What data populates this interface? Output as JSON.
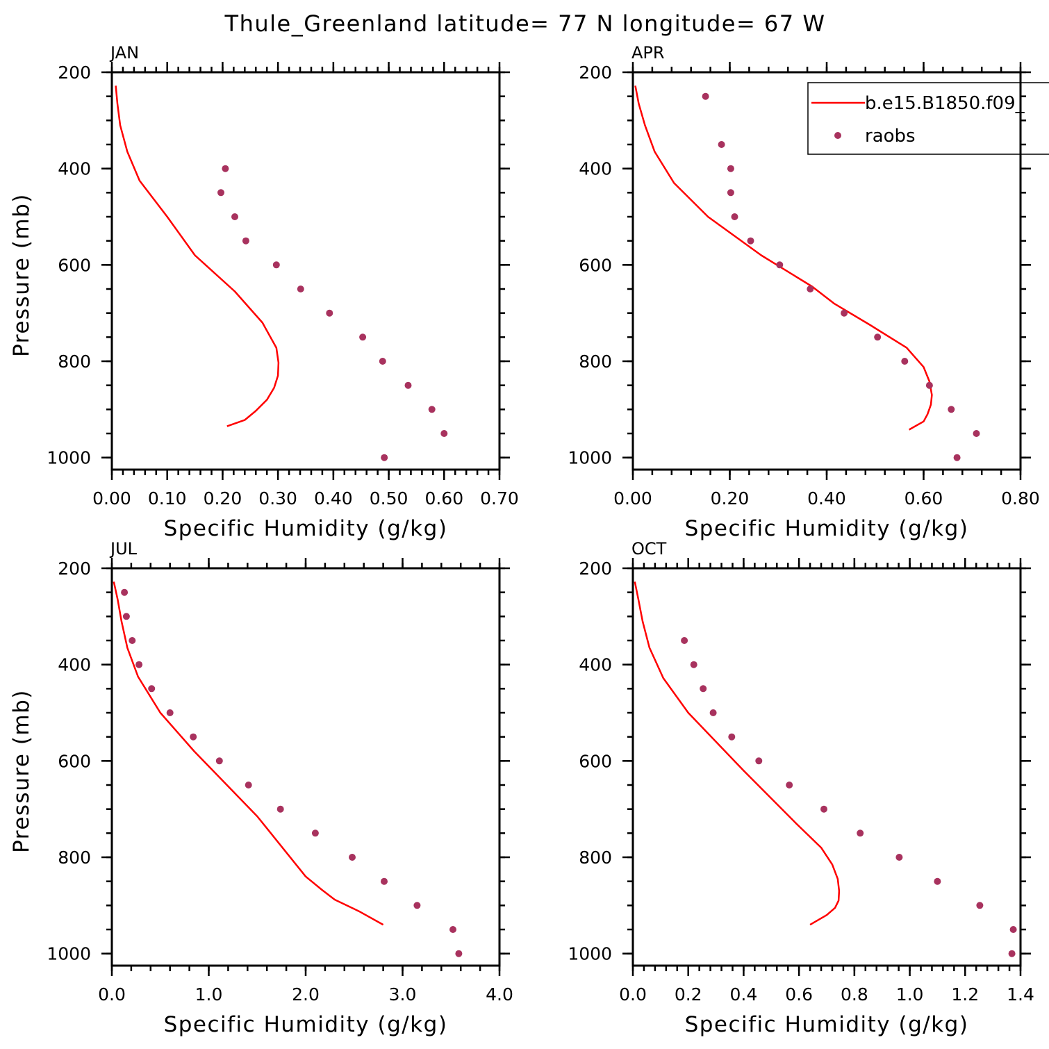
{
  "title": "Thule_Greenland  latitude= 77 N longitude= 67 W",
  "legend": {
    "model_label": "b.e15.B1850.f09_",
    "obs_label": "raobs",
    "model_color": "#ff0000",
    "obs_color": "#a8325e"
  },
  "chart_data": [
    {
      "type": "line",
      "panel": "JAN",
      "xlabel": "Specific Humidity (g/kg)",
      "ylabel": "Pressure (mb)",
      "xlim": [
        0,
        0.7
      ],
      "ylim": [
        200,
        1025
      ],
      "y_inverted": true,
      "x_ticks": [
        0,
        0.1,
        0.2,
        0.3,
        0.4,
        0.5,
        0.6,
        0.7
      ],
      "x_tick_labels": [
        "0.00",
        "0.10",
        "0.20",
        "0.30",
        "0.40",
        "0.50",
        "0.60",
        "0.70"
      ],
      "x_minor_step": 0.02,
      "y_ticks": [
        200,
        400,
        600,
        800,
        1000
      ],
      "y_tick_labels": [
        "200",
        "400",
        "600",
        "800",
        "1000"
      ],
      "y_minor_step": 50,
      "series": [
        {
          "name": "b.e15.B1850.f09_",
          "kind": "line",
          "x": [
            0.007,
            0.01,
            0.015,
            0.028,
            0.05,
            0.1,
            0.15,
            0.222,
            0.272,
            0.297,
            0.301,
            0.3,
            0.293,
            0.28,
            0.26,
            0.24,
            0.208
          ],
          "y": [
            228,
            265,
            310,
            365,
            425,
            500,
            580,
            655,
            720,
            772,
            803,
            830,
            855,
            880,
            903,
            922,
            935
          ]
        },
        {
          "name": "raobs",
          "kind": "scatter",
          "x": [
            0.205,
            0.197,
            0.222,
            0.242,
            0.297,
            0.341,
            0.393,
            0.453,
            0.489,
            0.535,
            0.578,
            0.6,
            0.492
          ],
          "y": [
            400,
            450,
            500,
            550,
            600,
            650,
            700,
            750,
            800,
            850,
            900,
            950,
            1000
          ]
        }
      ]
    },
    {
      "type": "line",
      "panel": "APR",
      "xlabel": "Specific Humidity (g/kg)",
      "ylabel": "",
      "xlim": [
        0,
        0.8
      ],
      "ylim": [
        200,
        1025
      ],
      "y_inverted": true,
      "x_ticks": [
        0,
        0.2,
        0.4,
        0.6,
        0.8
      ],
      "x_tick_labels": [
        "0.00",
        "0.20",
        "0.40",
        "0.60",
        "0.80"
      ],
      "x_minor_step": 0.04,
      "y_ticks": [
        200,
        400,
        600,
        800,
        1000
      ],
      "y_tick_labels": [
        "200",
        "400",
        "600",
        "800",
        "1000"
      ],
      "y_minor_step": 50,
      "series": [
        {
          "name": "b.e15.B1850.f09_",
          "kind": "line",
          "x": [
            0.005,
            0.012,
            0.025,
            0.045,
            0.085,
            0.155,
            0.265,
            0.37,
            0.415,
            0.49,
            0.565,
            0.6,
            0.612,
            0.617,
            0.615,
            0.608,
            0.6,
            0.57
          ],
          "y": [
            228,
            265,
            310,
            365,
            430,
            500,
            580,
            645,
            680,
            725,
            772,
            812,
            842,
            870,
            890,
            910,
            925,
            942
          ]
        },
        {
          "name": "raobs",
          "kind": "scatter",
          "x": [
            0.15,
            0.183,
            0.202,
            0.202,
            0.21,
            0.243,
            0.303,
            0.366,
            0.436,
            0.505,
            0.561,
            0.612,
            0.657,
            0.709,
            0.669
          ],
          "y": [
            250,
            350,
            400,
            450,
            500,
            550,
            600,
            650,
            700,
            750,
            800,
            850,
            900,
            950,
            1000
          ]
        }
      ]
    },
    {
      "type": "line",
      "panel": "JUL",
      "xlabel": "Specific Humidity (g/kg)",
      "ylabel": "Pressure (mb)",
      "xlim": [
        0,
        4
      ],
      "ylim": [
        200,
        1025
      ],
      "y_inverted": true,
      "x_ticks": [
        0,
        1,
        2,
        3,
        4
      ],
      "x_tick_labels": [
        "0.0",
        "1.0",
        "2.0",
        "3.0",
        "4.0"
      ],
      "x_minor_step": 0.2,
      "y_ticks": [
        200,
        400,
        600,
        800,
        1000
      ],
      "y_tick_labels": [
        "200",
        "400",
        "600",
        "800",
        "1000"
      ],
      "y_minor_step": 50,
      "series": [
        {
          "name": "b.e15.B1850.f09_",
          "kind": "line",
          "x": [
            0.02,
            0.06,
            0.1,
            0.16,
            0.27,
            0.5,
            0.85,
            1.5,
            2.0,
            2.17,
            2.3,
            2.55,
            2.8
          ],
          "y": [
            228,
            265,
            310,
            365,
            425,
            500,
            580,
            715,
            840,
            868,
            888,
            912,
            940
          ]
        },
        {
          "name": "raobs",
          "kind": "scatter",
          "x": [
            0.13,
            0.15,
            0.21,
            0.28,
            0.41,
            0.6,
            0.84,
            1.11,
            1.41,
            1.74,
            2.1,
            2.48,
            2.81,
            3.15,
            3.52,
            3.58
          ],
          "y": [
            250,
            300,
            350,
            400,
            450,
            500,
            550,
            600,
            650,
            700,
            750,
            800,
            850,
            900,
            950,
            1000
          ]
        }
      ]
    },
    {
      "type": "line",
      "panel": "OCT",
      "xlabel": "Specific Humidity (g/kg)",
      "ylabel": "",
      "xlim": [
        0,
        1.4
      ],
      "ylim": [
        200,
        1025
      ],
      "y_inverted": true,
      "x_ticks": [
        0,
        0.2,
        0.4,
        0.6,
        0.8,
        1.0,
        1.2,
        1.4
      ],
      "x_tick_labels": [
        "0.0",
        "0.2",
        "0.4",
        "0.6",
        "0.8",
        "1.0",
        "1.2",
        "1.4"
      ],
      "x_minor_step": 0.04,
      "y_ticks": [
        200,
        400,
        600,
        800,
        1000
      ],
      "y_tick_labels": [
        "200",
        "400",
        "600",
        "800",
        "1000"
      ],
      "y_minor_step": 50,
      "series": [
        {
          "name": "b.e15.B1850.f09_",
          "kind": "line",
          "x": [
            0.007,
            0.02,
            0.035,
            0.06,
            0.11,
            0.2,
            0.4,
            0.59,
            0.68,
            0.72,
            0.74,
            0.745,
            0.743,
            0.73,
            0.7,
            0.64
          ],
          "y": [
            228,
            265,
            310,
            365,
            428,
            500,
            620,
            730,
            780,
            815,
            845,
            870,
            890,
            905,
            920,
            940
          ]
        },
        {
          "name": "raobs",
          "kind": "scatter",
          "x": [
            0.186,
            0.22,
            0.254,
            0.29,
            0.357,
            0.455,
            0.565,
            0.69,
            0.821,
            0.962,
            1.1,
            1.253,
            1.374,
            1.369
          ],
          "y": [
            350,
            400,
            450,
            500,
            550,
            600,
            650,
            700,
            750,
            800,
            850,
            900,
            950,
            1000
          ]
        }
      ]
    }
  ]
}
